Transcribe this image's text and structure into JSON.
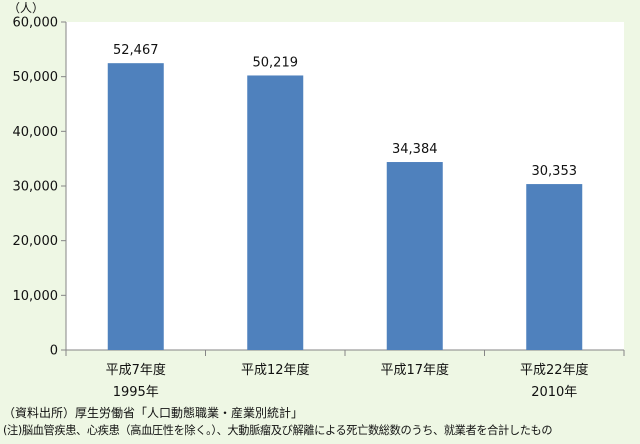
{
  "chart_data": {
    "type": "bar",
    "title": "",
    "unit_label": "（人）",
    "xlabel": "",
    "ylabel": "",
    "ylim": [
      0,
      60000
    ],
    "yticks": [
      0,
      10000,
      20000,
      30000,
      40000,
      50000,
      60000
    ],
    "ytick_labels": [
      "0",
      "10,000",
      "20,000",
      "30,000",
      "40,000",
      "50,000",
      "60,000"
    ],
    "categories": [
      "平成7年度",
      "平成12年度",
      "平成17年度",
      "平成22年度"
    ],
    "sublabels": [
      "1995年",
      "",
      "",
      "2010年"
    ],
    "values": [
      52467,
      50219,
      34384,
      30353
    ],
    "value_labels": [
      "52,467",
      "50,219",
      "34,384",
      "30,353"
    ],
    "grid": false,
    "legend": "none",
    "bar_color": "#4f81bd",
    "background_color": "#eef7e4",
    "plot_background_color": "#ffffff"
  },
  "footer": {
    "source": "（資料出所）厚生労働省「人口動態職業・産業別統計」",
    "note": "(注)脳血管疾患、心疾患（高血圧性を除く。）、大動脈瘤及び解離による死亡数総数のうち、就業者を合計したもの"
  }
}
